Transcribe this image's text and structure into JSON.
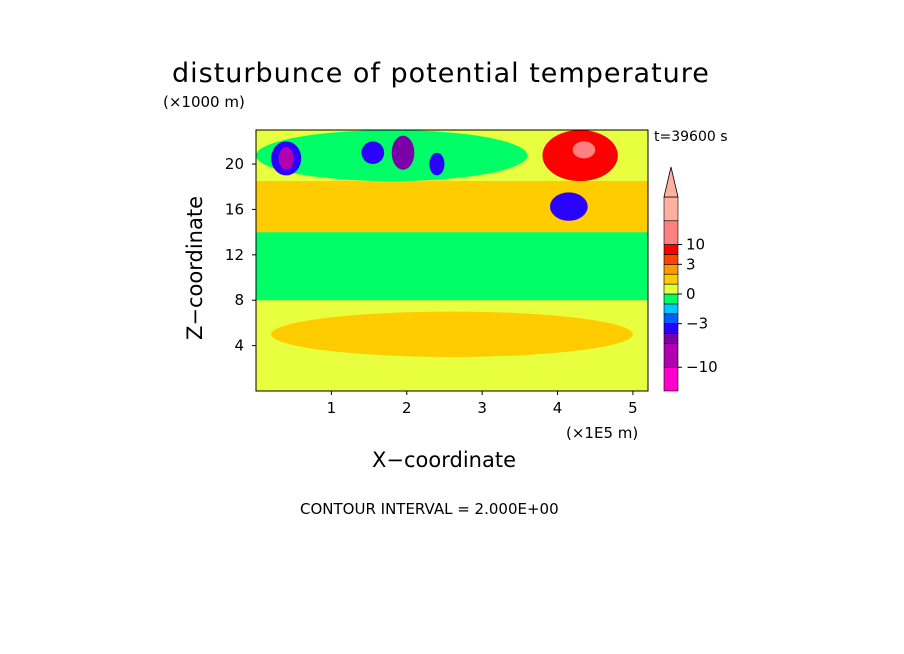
{
  "chart_data": {
    "type": "heatmap",
    "title": "disturbunce of potential temperature",
    "z_unit": "(×1000 m)",
    "x_unit": "(×1E5 m)",
    "xlabel": "X−coordinate",
    "ylabel": "Z−coordinate",
    "time_label": "t=39600 s",
    "footer": "CONTOUR INTERVAL = 2.000E+00",
    "xlim": [
      0,
      5.2
    ],
    "ylim": [
      0,
      23
    ],
    "x_ticks": [
      "1",
      "2",
      "3",
      "4",
      "5"
    ],
    "y_ticks": [
      "4",
      "8",
      "12",
      "16",
      "20"
    ],
    "x_tick_values": [
      1,
      2,
      3,
      4,
      5
    ],
    "y_tick_values": [
      4,
      8,
      12,
      16,
      20
    ],
    "colorbar": {
      "levels": [
        {
          "value": -15,
          "color": "#ff00cc"
        },
        {
          "value": -10,
          "color": "#b000b0"
        },
        {
          "value": -7,
          "color": "#7a00a8"
        },
        {
          "value": -5,
          "color": "#2a00ff"
        },
        {
          "value": -3,
          "color": "#0060ff"
        },
        {
          "value": -2,
          "color": "#00c8ff"
        },
        {
          "value": -1,
          "color": "#00ff66"
        },
        {
          "value": 0,
          "color": "#e8ff40"
        },
        {
          "value": 1,
          "color": "#ffcc00"
        },
        {
          "value": 2,
          "color": "#ff9900"
        },
        {
          "value": 3,
          "color": "#ff4400"
        },
        {
          "value": 5,
          "color": "#ff0000"
        },
        {
          "value": 10,
          "color": "#ff8080"
        },
        {
          "value": 15,
          "color": "#ffb0a0"
        }
      ],
      "labels": [
        "10",
        "3",
        "0",
        "−3",
        "−10"
      ],
      "label_values": [
        10,
        3,
        0,
        -3,
        -10
      ]
    },
    "field_regions": [
      {
        "x": [
          0,
          5.2
        ],
        "z": [
          0,
          23
        ],
        "value": 0
      },
      {
        "x": [
          0,
          5.2
        ],
        "z": [
          8,
          14
        ],
        "value": -1
      },
      {
        "x": [
          0,
          5.2
        ],
        "z": [
          14,
          18.5
        ],
        "value": 1
      },
      {
        "x": [
          0,
          3.6
        ],
        "z": [
          18.5,
          23
        ],
        "value": -1
      },
      {
        "x": [
          0.2,
          0.6
        ],
        "z": [
          19,
          22
        ],
        "value": -5
      },
      {
        "x": [
          0.3,
          0.5
        ],
        "z": [
          19.5,
          21.5
        ],
        "value": -10
      },
      {
        "x": [
          1.4,
          1.7
        ],
        "z": [
          20,
          22
        ],
        "value": -5
      },
      {
        "x": [
          1.8,
          2.1
        ],
        "z": [
          19.5,
          22.5
        ],
        "value": -7
      },
      {
        "x": [
          2.3,
          2.5
        ],
        "z": [
          19,
          21
        ],
        "value": -5
      },
      {
        "x": [
          3.8,
          4.8
        ],
        "z": [
          18.5,
          23
        ],
        "value": 5
      },
      {
        "x": [
          4.2,
          4.5
        ],
        "z": [
          20.5,
          22
        ],
        "value": 10
      },
      {
        "x": [
          3.9,
          4.4
        ],
        "z": [
          15,
          17.5
        ],
        "value": -5
      },
      {
        "x": [
          0.2,
          5.0
        ],
        "z": [
          3,
          7
        ],
        "value": 1
      }
    ]
  }
}
